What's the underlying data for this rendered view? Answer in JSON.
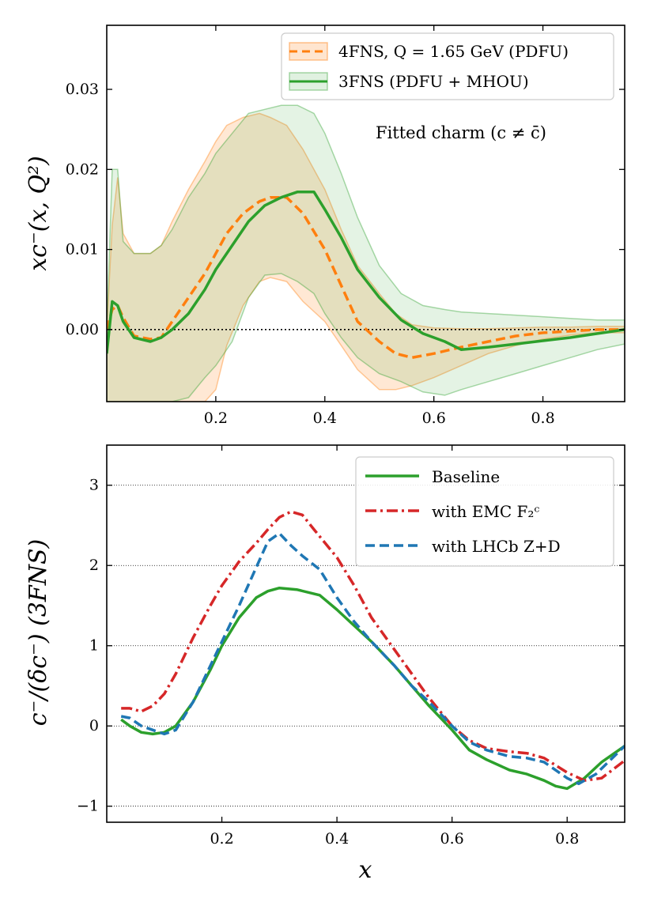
{
  "chart_data": [
    {
      "type": "line",
      "xlabel": "",
      "ylabel": "xc⁻(x, Q²)",
      "xlim": [
        0.0,
        0.95
      ],
      "ylim": [
        -0.009,
        0.038
      ],
      "xticks": [
        0.2,
        0.4,
        0.6,
        0.8
      ],
      "xtick_labels": [
        "0.2",
        "0.4",
        "0.6",
        "0.8"
      ],
      "yticks": [
        0.0,
        0.01,
        0.02,
        0.03
      ],
      "ytick_labels": [
        "0.00",
        "0.01",
        "0.02",
        "0.03"
      ],
      "annotation": "Fitted charm (c ≠ c̄)",
      "legend_position": "top-right",
      "zero_line": true,
      "series": [
        {
          "name": "4FNS, Q = 1.65 GeV (PDFU)",
          "color": "#ff7f0e",
          "style": "dashed",
          "x": [
            0.0,
            0.01,
            0.02,
            0.03,
            0.05,
            0.08,
            0.1,
            0.12,
            0.15,
            0.18,
            0.2,
            0.22,
            0.25,
            0.28,
            0.3,
            0.33,
            0.36,
            0.4,
            0.43,
            0.46,
            0.5,
            0.53,
            0.56,
            0.6,
            0.65,
            0.7,
            0.75,
            0.8,
            0.85,
            0.9,
            0.95
          ],
          "values": [
            0.0,
            0.0025,
            0.003,
            0.0015,
            -0.0008,
            -0.0012,
            -0.001,
            0.001,
            0.004,
            0.007,
            0.0095,
            0.012,
            0.0145,
            0.016,
            0.0165,
            0.0165,
            0.0145,
            0.01,
            0.0055,
            0.001,
            -0.0015,
            -0.003,
            -0.0035,
            -0.003,
            -0.0022,
            -0.0015,
            -0.0008,
            -0.0004,
            -0.0002,
            0.0,
            0.0
          ],
          "band_upper": [
            0.0,
            0.013,
            0.019,
            0.012,
            0.0095,
            0.0095,
            0.0105,
            0.0135,
            0.0175,
            0.021,
            0.0235,
            0.0255,
            0.0265,
            0.027,
            0.0265,
            0.0255,
            0.0225,
            0.0175,
            0.0125,
            0.008,
            0.0045,
            0.002,
            0.0006,
            0.0002,
            0.0001,
            0.0001,
            0.0002,
            0.0003,
            0.0003,
            0.0004,
            0.0004
          ],
          "band_lower": [
            -0.009,
            -0.009,
            -0.009,
            -0.009,
            -0.009,
            -0.009,
            -0.009,
            -0.009,
            -0.009,
            -0.009,
            -0.0075,
            -0.002,
            0.003,
            0.006,
            0.0065,
            0.006,
            0.0035,
            0.001,
            -0.002,
            -0.005,
            -0.0075,
            -0.0075,
            -0.007,
            -0.006,
            -0.0045,
            -0.003,
            -0.002,
            -0.0012,
            -0.0007,
            -0.0004,
            -0.0004
          ]
        },
        {
          "name": "3FNS (PDFU + MHOU)",
          "color": "#2ca02c",
          "style": "solid",
          "x": [
            0.0,
            0.01,
            0.02,
            0.03,
            0.05,
            0.08,
            0.1,
            0.12,
            0.15,
            0.18,
            0.2,
            0.23,
            0.26,
            0.29,
            0.32,
            0.35,
            0.38,
            0.4,
            0.43,
            0.46,
            0.5,
            0.54,
            0.58,
            0.62,
            0.65,
            0.7,
            0.75,
            0.8,
            0.85,
            0.9,
            0.95
          ],
          "values": [
            -0.003,
            0.0035,
            0.003,
            0.001,
            -0.001,
            -0.0015,
            -0.001,
            0.0,
            0.002,
            0.005,
            0.0075,
            0.0105,
            0.0135,
            0.0155,
            0.0165,
            0.0172,
            0.0172,
            0.015,
            0.0115,
            0.0075,
            0.004,
            0.0012,
            -0.0005,
            -0.0015,
            -0.0025,
            -0.0022,
            -0.0018,
            -0.0014,
            -0.001,
            -0.0005,
            0.0
          ],
          "band_upper": [
            0.0,
            0.02,
            0.02,
            0.011,
            0.0095,
            0.0095,
            0.0105,
            0.0125,
            0.0165,
            0.0195,
            0.022,
            0.0245,
            0.027,
            0.0275,
            0.028,
            0.028,
            0.027,
            0.0245,
            0.0195,
            0.014,
            0.008,
            0.0045,
            0.003,
            0.0025,
            0.0022,
            0.002,
            0.0018,
            0.0016,
            0.0014,
            0.0012,
            0.0012
          ],
          "band_lower": [
            -0.009,
            -0.009,
            -0.009,
            -0.009,
            -0.009,
            -0.009,
            -0.009,
            -0.009,
            -0.0085,
            -0.006,
            -0.0045,
            -0.0015,
            0.004,
            0.0068,
            0.007,
            0.006,
            0.0045,
            0.002,
            -0.001,
            -0.0035,
            -0.0055,
            -0.0065,
            -0.0078,
            -0.0082,
            -0.0075,
            -0.0065,
            -0.0055,
            -0.0045,
            -0.0035,
            -0.0025,
            -0.0018
          ]
        }
      ]
    },
    {
      "type": "line",
      "xlabel": "x",
      "ylabel": "c⁻/(δc⁻) (3FNS)",
      "xlim": [
        0.0,
        0.9
      ],
      "ylim": [
        -1.2,
        3.5
      ],
      "xticks": [
        0.2,
        0.4,
        0.6,
        0.8
      ],
      "xtick_labels": [
        "0.2",
        "0.4",
        "0.6",
        "0.8"
      ],
      "yticks": [
        -1,
        0,
        1,
        2,
        3
      ],
      "ytick_labels": [
        "−1",
        "0",
        "1",
        "2",
        "3"
      ],
      "grid": "horizontal dotted",
      "legend_position": "top-right",
      "series": [
        {
          "name": "Baseline",
          "color": "#2ca02c",
          "style": "solid",
          "x": [
            0.025,
            0.04,
            0.06,
            0.08,
            0.1,
            0.12,
            0.15,
            0.18,
            0.2,
            0.23,
            0.26,
            0.28,
            0.3,
            0.33,
            0.37,
            0.4,
            0.43,
            0.46,
            0.5,
            0.53,
            0.56,
            0.6,
            0.63,
            0.66,
            0.7,
            0.73,
            0.76,
            0.78,
            0.8,
            0.83,
            0.86,
            0.9
          ],
          "values": [
            0.08,
            0.0,
            -0.08,
            -0.1,
            -0.08,
            0.0,
            0.3,
            0.7,
            1.0,
            1.35,
            1.6,
            1.68,
            1.72,
            1.7,
            1.63,
            1.45,
            1.25,
            1.05,
            0.75,
            0.5,
            0.25,
            -0.05,
            -0.3,
            -0.42,
            -0.55,
            -0.6,
            -0.68,
            -0.75,
            -0.78,
            -0.65,
            -0.45,
            -0.25
          ]
        },
        {
          "name": "with EMC F₂ᶜ",
          "color": "#d62728",
          "style": "dashdot",
          "x": [
            0.025,
            0.04,
            0.06,
            0.08,
            0.1,
            0.12,
            0.15,
            0.18,
            0.2,
            0.23,
            0.26,
            0.28,
            0.3,
            0.32,
            0.34,
            0.36,
            0.4,
            0.43,
            0.46,
            0.5,
            0.53,
            0.56,
            0.6,
            0.63,
            0.66,
            0.7,
            0.73,
            0.76,
            0.8,
            0.83,
            0.86,
            0.9
          ],
          "values": [
            0.22,
            0.22,
            0.18,
            0.25,
            0.4,
            0.65,
            1.1,
            1.5,
            1.75,
            2.05,
            2.28,
            2.45,
            2.6,
            2.67,
            2.63,
            2.45,
            2.1,
            1.75,
            1.35,
            0.95,
            0.65,
            0.35,
            0.0,
            -0.18,
            -0.28,
            -0.32,
            -0.34,
            -0.4,
            -0.58,
            -0.68,
            -0.65,
            -0.43
          ]
        },
        {
          "name": "with LHCb Z+D",
          "color": "#1f77b4",
          "style": "dashed",
          "x": [
            0.025,
            0.04,
            0.06,
            0.08,
            0.1,
            0.12,
            0.15,
            0.18,
            0.2,
            0.23,
            0.26,
            0.28,
            0.3,
            0.32,
            0.34,
            0.37,
            0.4,
            0.43,
            0.46,
            0.5,
            0.53,
            0.56,
            0.6,
            0.63,
            0.66,
            0.7,
            0.73,
            0.76,
            0.8,
            0.82,
            0.85,
            0.9
          ],
          "values": [
            0.12,
            0.1,
            0.0,
            -0.05,
            -0.1,
            -0.05,
            0.3,
            0.75,
            1.05,
            1.5,
            1.98,
            2.3,
            2.4,
            2.25,
            2.12,
            1.95,
            1.6,
            1.3,
            1.05,
            0.75,
            0.5,
            0.3,
            0.0,
            -0.2,
            -0.3,
            -0.38,
            -0.4,
            -0.45,
            -0.65,
            -0.72,
            -0.6,
            -0.25
          ]
        }
      ]
    }
  ]
}
